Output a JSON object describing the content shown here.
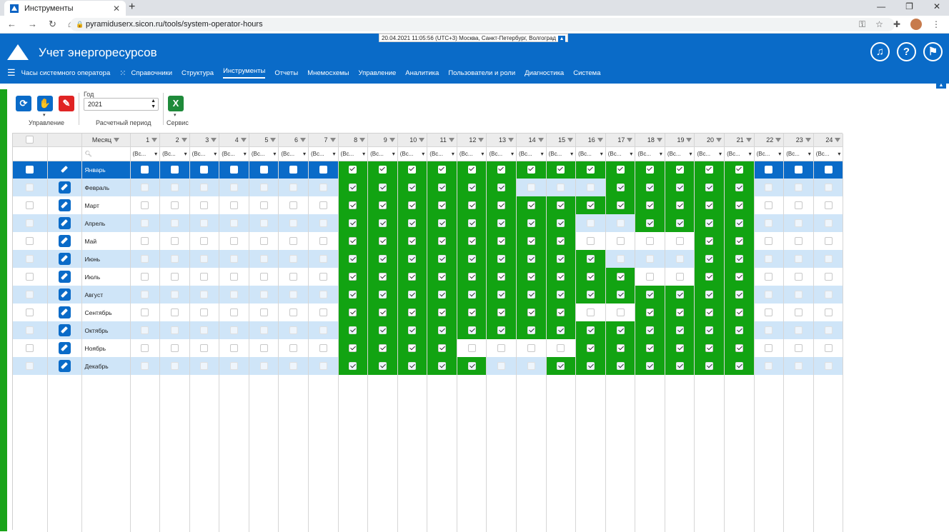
{
  "browser": {
    "tab_title": "Инструменты",
    "url": "pyramiduserx.sicon.ru/tools/system-operator-hours"
  },
  "app": {
    "title": "Учет энергоресурсов",
    "datetime": "20.04.2021 11:05:56 (UTC+3) Москва, Санкт-Петербург, Волгоград"
  },
  "menu": {
    "current": "Часы системного оператора",
    "items": [
      "Справочники",
      "Структура",
      "Инструменты",
      "Отчеты",
      "Мнемосхемы",
      "Управление",
      "Аналитика",
      "Пользователи и роли",
      "Диагностика",
      "Система"
    ],
    "active": "Инструменты"
  },
  "toolbar": {
    "group_management": "Управление",
    "year_label": "Год",
    "year_value": "2021",
    "period_label": "Расчетный период",
    "group_service": "Сервис"
  },
  "grid": {
    "month_header": "Месяц",
    "hours": [
      "1",
      "2",
      "3",
      "4",
      "5",
      "6",
      "7",
      "8",
      "9",
      "10",
      "11",
      "12",
      "13",
      "14",
      "15",
      "16",
      "17",
      "18",
      "19",
      "20",
      "21",
      "22",
      "23",
      "24"
    ],
    "filter_text": "(Вс...",
    "rows": [
      {
        "month": "Январь",
        "hours": [
          8,
          9,
          10,
          11,
          12,
          13,
          14,
          15,
          16,
          17,
          18,
          19,
          20,
          21
        ]
      },
      {
        "month": "Февраль",
        "hours": [
          8,
          9,
          10,
          11,
          12,
          13,
          17,
          18,
          19,
          20,
          21
        ]
      },
      {
        "month": "Март",
        "hours": [
          8,
          9,
          10,
          11,
          12,
          13,
          14,
          15,
          16,
          17,
          18,
          19,
          20,
          21
        ]
      },
      {
        "month": "Апрель",
        "hours": [
          8,
          9,
          10,
          11,
          12,
          13,
          14,
          15,
          18,
          19,
          20,
          21
        ]
      },
      {
        "month": "Май",
        "hours": [
          8,
          9,
          10,
          11,
          12,
          13,
          14,
          15,
          20,
          21
        ]
      },
      {
        "month": "Июнь",
        "hours": [
          8,
          9,
          10,
          11,
          12,
          13,
          14,
          15,
          16,
          20,
          21
        ]
      },
      {
        "month": "Июль",
        "hours": [
          8,
          9,
          10,
          11,
          12,
          13,
          14,
          15,
          16,
          17,
          20,
          21
        ]
      },
      {
        "month": "Август",
        "hours": [
          8,
          9,
          10,
          11,
          12,
          13,
          14,
          15,
          16,
          17,
          18,
          19,
          20,
          21
        ]
      },
      {
        "month": "Сентябрь",
        "hours": [
          8,
          9,
          10,
          11,
          12,
          13,
          14,
          15,
          18,
          19,
          20,
          21
        ]
      },
      {
        "month": "Октябрь",
        "hours": [
          8,
          9,
          10,
          11,
          12,
          13,
          14,
          15,
          16,
          17,
          18,
          19,
          20,
          21
        ]
      },
      {
        "month": "Ноябрь",
        "hours": [
          8,
          9,
          10,
          11,
          16,
          17,
          18,
          19,
          20,
          21
        ]
      },
      {
        "month": "Декабрь",
        "hours": [
          8,
          9,
          10,
          11,
          12,
          15,
          16,
          17,
          18,
          19,
          20,
          21
        ]
      }
    ],
    "selected_row": 0
  }
}
